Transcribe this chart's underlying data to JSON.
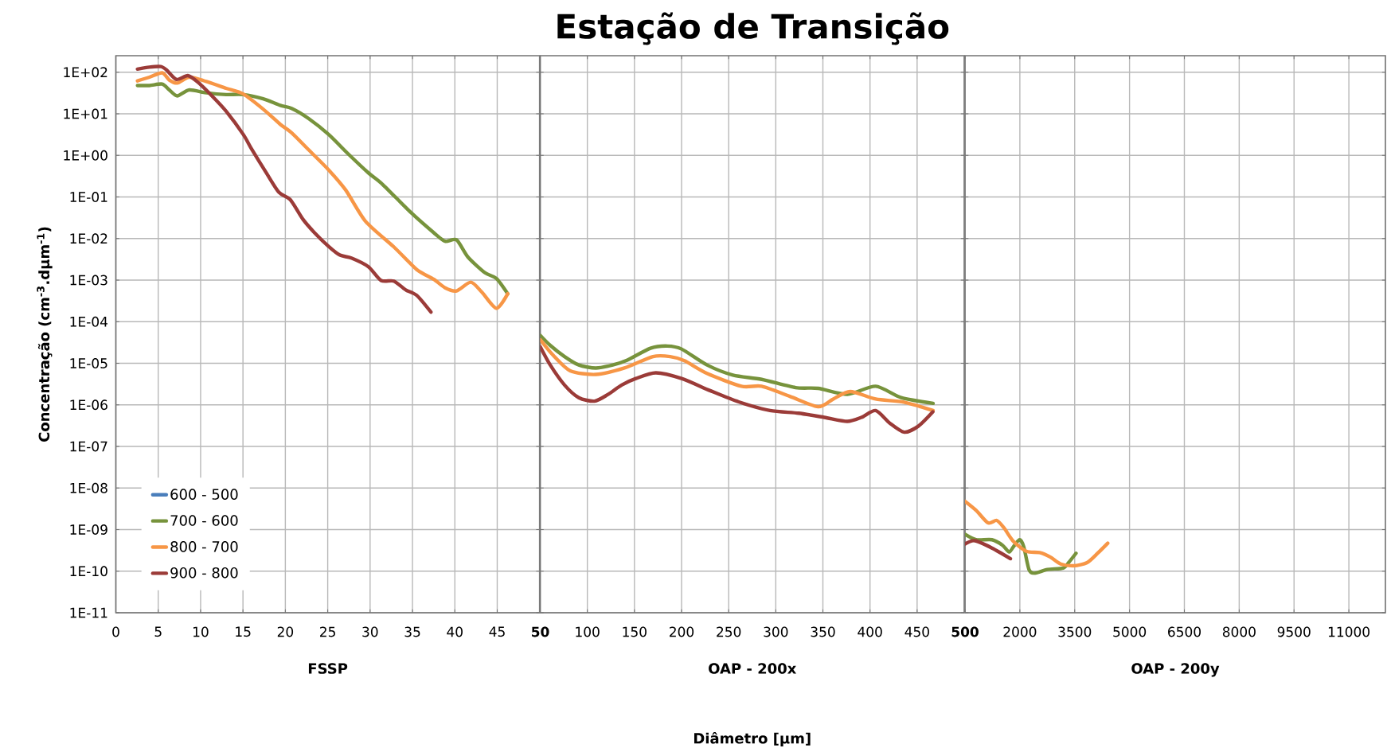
{
  "chart_data": [
    {
      "type": "line",
      "xlabel": "FSSP",
      "ylabel": "Concentração (cm$^{-3}$.dµm$^{-1}$)",
      "log": "y",
      "grid": true,
      "legend": "bottom left",
      "marker": "none",
      "line_style": "solid",
      "xlim": [
        0,
        50
      ],
      "xticks": [
        0,
        5,
        10,
        15,
        20,
        25,
        30,
        35,
        40,
        45
      ],
      "ylim": [
        1e-11,
        250
      ],
      "yticks": [
        {
          "value": 1e-11,
          "label": "1E-11"
        },
        {
          "value": 1e-10,
          "label": "1E-10"
        },
        {
          "value": 1e-09,
          "label": "1E-09"
        },
        {
          "value": 1e-08,
          "label": "1E-08"
        },
        {
          "value": 1e-07,
          "label": "1E-07"
        },
        {
          "value": 1e-06,
          "label": "1E-06"
        },
        {
          "value": 1e-05,
          "label": "1E-05"
        },
        {
          "value": 0.0001,
          "label": "1E-04"
        },
        {
          "value": 0.001,
          "label": "1E-03"
        },
        {
          "value": 0.01,
          "label": "1E-02"
        },
        {
          "value": 0.1,
          "label": "1E-01"
        },
        {
          "value": 1,
          "label": "1E+00"
        },
        {
          "value": 10,
          "label": "1E+01"
        },
        {
          "value": 100,
          "label": "1E+02"
        }
      ],
      "series": [
        {
          "name": "600 - 500",
          "color": "#4a7ebb"
        },
        {
          "name": "700 - 600",
          "color": "#77933c",
          "x": [
            2.55,
            3.96,
            5.47,
            6.31,
            7.25,
            8.66,
            10.67,
            13.02,
            15.03,
            17.38,
            19.4,
            20.74,
            22.75,
            25.1,
            27.45,
            29.8,
            31.48,
            34.83,
            37.52,
            38.86,
            40.2,
            41.54,
            43.56,
            44.9,
            46.24
          ],
          "values": [
            48,
            48,
            52,
            37.5,
            27,
            37.5,
            32,
            29,
            29,
            23,
            16,
            13.5,
            7.7,
            3.2,
            1.07,
            0.38,
            0.2,
            0.042,
            0.0138,
            0.0086,
            0.0093,
            0.0036,
            0.0015,
            0.0011,
            0.00047
          ]
        },
        {
          "name": "800 - 700",
          "color": "#f79646",
          "x": [
            2.55,
            3.96,
            5.47,
            6.31,
            7.25,
            8.66,
            10.67,
            13.02,
            15.03,
            17.38,
            19.4,
            20.74,
            22.75,
            25.1,
            27.11,
            29.46,
            32.8,
            35.5,
            37.5,
            38.86,
            40.2,
            41.88,
            43.2,
            44.9,
            46.24
          ],
          "values": [
            62,
            76,
            97,
            65,
            55,
            76,
            60,
            41,
            30,
            13,
            5.6,
            3.5,
            1.36,
            0.45,
            0.148,
            0.026,
            0.0063,
            0.0018,
            0.00105,
            0.00065,
            0.00055,
            0.00089,
            0.00051,
            0.00021,
            0.00047
          ]
        },
        {
          "name": "900 - 800",
          "color": "#9b3b38",
          "x": [
            2.55,
            3.96,
            5.3,
            5.97,
            7.15,
            8.49,
            9.66,
            11.34,
            13.02,
            15.03,
            16.04,
            17.72,
            19.23,
            20.57,
            22.08,
            23.42,
            25.1,
            26.44,
            27.79,
            29.8,
            31.3,
            32.8,
            34.16,
            35.5,
            37.18
          ],
          "values": [
            119,
            133,
            137,
            114,
            67,
            83,
            58,
            27,
            11.5,
            3.2,
            1.4,
            0.39,
            0.13,
            0.087,
            0.029,
            0.014,
            0.0065,
            0.004,
            0.0034,
            0.0021,
            0.00098,
            0.00095,
            0.00059,
            0.00043,
            0.00017
          ]
        }
      ]
    },
    {
      "type": "line",
      "title": "Estação de Transição",
      "xlabel": "OAP - 200x",
      "annotations": [
        "Diâmetro [µm]"
      ],
      "log": "y",
      "grid": true,
      "marker": "none",
      "line_style": "solid",
      "tick_labels": "x",
      "xlim": [
        50,
        500
      ],
      "xticks": [
        50,
        100,
        150,
        200,
        250,
        300,
        350,
        400,
        450
      ],
      "ylim": [
        1e-11,
        250
      ],
      "yticks": [
        {
          "value": 1e-11,
          "label": null
        },
        {
          "value": 1e-10,
          "label": null
        },
        {
          "value": 1e-09,
          "label": null
        },
        {
          "value": 1e-08,
          "label": null
        },
        {
          "value": 1e-07,
          "label": null
        },
        {
          "value": 1e-06,
          "label": null
        },
        {
          "value": 1e-05,
          "label": null
        },
        {
          "value": 0.0001,
          "label": null
        },
        {
          "value": 0.001,
          "label": null
        },
        {
          "value": 0.01,
          "label": null
        },
        {
          "value": 0.1,
          "label": null
        },
        {
          "value": 1,
          "label": null
        },
        {
          "value": 10,
          "label": null
        },
        {
          "value": 100,
          "label": null
        }
      ],
      "series": [
        {
          "color": "#77933c",
          "x": [
            50,
            60.6,
            75.8,
            90.9,
            109,
            127,
            142,
            167,
            185,
            200,
            227,
            254.5,
            285,
            321,
            345,
            376,
            406,
            433,
            467
          ],
          "values": [
            4.7e-05,
            2.7e-05,
            1.45e-05,
            9.1e-06,
            7.7e-06,
            9.1e-06,
            1.18e-05,
            2.3e-05,
            2.6e-05,
            2.2e-05,
            9.1e-06,
            5.2e-06,
            4.1e-06,
            2.6e-06,
            2.5e-06,
            1.8e-06,
            2.8e-06,
            1.5e-06,
            1.09e-06
          ]
        },
        {
          "color": "#f79646",
          "x": [
            50,
            63.6,
            81.8,
            109,
            139.4,
            169.7,
            187.9,
            203,
            227,
            263.6,
            285,
            315,
            345,
            361,
            379,
            406,
            436,
            467
          ],
          "values": [
            3.7e-05,
            1.57e-05,
            6.6e-06,
            5.4e-06,
            7.7e-06,
            1.45e-05,
            1.45e-05,
            1.15e-05,
            5.7e-06,
            2.8e-06,
            2.8e-06,
            1.6e-06,
            9e-07,
            1.38e-06,
            2.1e-06,
            1.38e-06,
            1.16e-06,
            7.3e-07
          ]
        },
        {
          "color": "#9b3b38",
          "x": [
            50,
            60.6,
            75.8,
            90.9,
            107.6,
            121.2,
            136.4,
            151.5,
            172.7,
            200,
            230.3,
            260.6,
            293.9,
            324.2,
            351.5,
            375.8,
            390.9,
            406,
            421.2,
            436.4,
            451.5,
            466.7
          ],
          "values": [
            2.5e-05,
            9.1e-06,
            3e-06,
            1.49e-06,
            1.23e-06,
            1.74e-06,
            3e-06,
            4.3e-06,
            5.9e-06,
            4.3e-06,
            2.2e-06,
            1.18e-06,
            7.3e-07,
            6.3e-07,
            5e-07,
            4e-07,
            5e-07,
            7.3e-07,
            3.6e-07,
            2.2e-07,
            3.1e-07,
            6.8e-07
          ]
        }
      ]
    },
    {
      "type": "line",
      "xlabel": "OAP - 200y",
      "log": "y",
      "grid": true,
      "marker": "none",
      "line_style": "solid",
      "tick_labels": "x",
      "xlim": [
        500,
        12000
      ],
      "xticks": [
        500,
        2000,
        3500,
        5000,
        6500,
        8000,
        9500,
        11000
      ],
      "ylim": [
        1e-11,
        250
      ],
      "yticks": [
        {
          "value": 1e-11,
          "label": null
        },
        {
          "value": 1e-10,
          "label": null
        },
        {
          "value": 1e-09,
          "label": null
        },
        {
          "value": 1e-08,
          "label": null
        },
        {
          "value": 1e-07,
          "label": null
        },
        {
          "value": 1e-06,
          "label": null
        },
        {
          "value": 1e-05,
          "label": null
        },
        {
          "value": 0.0001,
          "label": null
        },
        {
          "value": 0.001,
          "label": null
        },
        {
          "value": 0.01,
          "label": null
        },
        {
          "value": 0.1,
          "label": null
        },
        {
          "value": 1,
          "label": null
        },
        {
          "value": 10,
          "label": null
        },
        {
          "value": 100,
          "label": null
        }
      ],
      "series": [
        {
          "color": "#77933c",
          "x": [
            500,
            804,
            1237,
            1527,
            1707,
            1852,
            1996,
            2105,
            2249,
            2394,
            2755,
            3189,
            3334,
            3536
          ],
          "values": [
            7.7e-10,
            5.7e-10,
            5.7e-10,
            4.2e-10,
            2.9e-10,
            4.2e-10,
            5.7e-10,
            3.9e-10,
            1.1e-10,
            8.9e-11,
            1.1e-10,
            1.19e-10,
            1.61e-10,
            2.7e-10
          ]
        },
        {
          "color": "#f79646",
          "x": [
            500,
            804,
            1129,
            1368,
            1563,
            1816,
            2177,
            2539,
            2828,
            3117,
            3478,
            3840,
            4129,
            4404
          ],
          "values": [
            4.8e-09,
            2.9e-09,
            1.45e-09,
            1.66e-09,
            1.11e-09,
            5.3e-10,
            3e-10,
            2.8e-10,
            2.2e-10,
            1.49e-10,
            1.35e-10,
            1.61e-10,
            2.7e-10,
            4.7e-10
          ]
        },
        {
          "color": "#9b3b38",
          "x": [
            500,
            767,
            1237,
            1743
          ],
          "values": [
            4.5e-10,
            5.4e-10,
            3.6e-10,
            2e-10
          ]
        }
      ]
    }
  ]
}
